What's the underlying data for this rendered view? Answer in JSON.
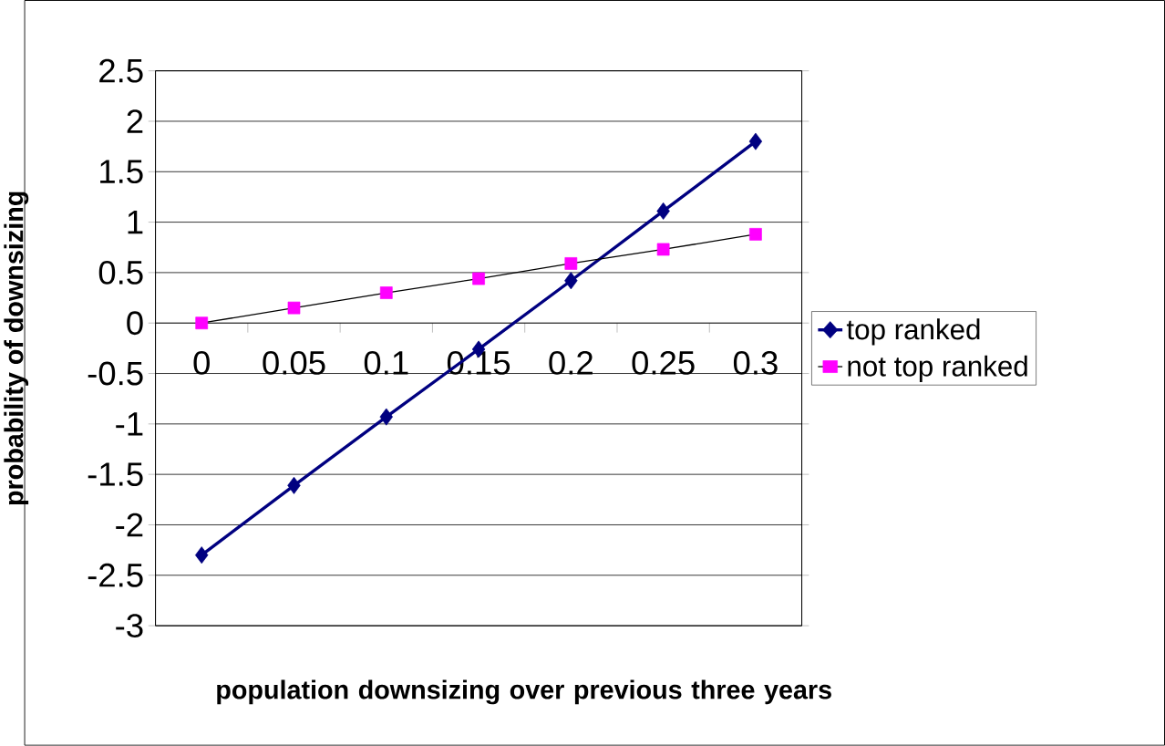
{
  "chart_data": {
    "type": "line",
    "xlabel": "population downsizing over previous three years",
    "ylabel": "probability of downsizing",
    "categories": [
      "0",
      "0.05",
      "0.1",
      "0.15",
      "0.2",
      "0.25",
      "0.3"
    ],
    "series": [
      {
        "name": "top ranked",
        "color": "#000080",
        "marker": "diamond",
        "values": [
          -2.3,
          -1.61,
          -0.93,
          -0.26,
          0.42,
          1.11,
          1.8
        ]
      },
      {
        "name": "not top ranked",
        "color": "#ff00ff",
        "marker": "square",
        "values": [
          0,
          0.15,
          0.3,
          0.44,
          0.59,
          0.73,
          0.88
        ]
      }
    ],
    "ylim": [
      -3,
      2.5
    ],
    "yticks": [
      -3,
      -2.5,
      -2,
      -1.5,
      -1,
      -0.5,
      0,
      0.5,
      1,
      1.5,
      2,
      2.5
    ],
    "grid": "y",
    "legend": "right",
    "line_style": "solid"
  }
}
